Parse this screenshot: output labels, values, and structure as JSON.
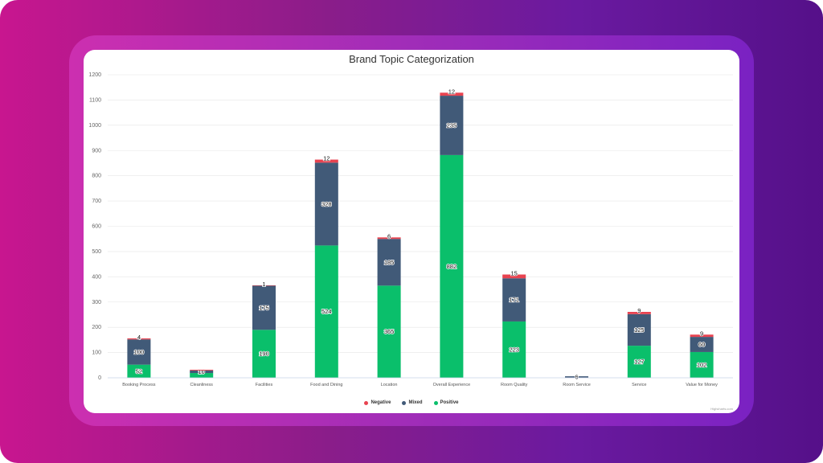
{
  "chart_data": {
    "type": "bar",
    "stacked": true,
    "title": "Brand Topic Categorization",
    "categories": [
      "Booking Process",
      "Cleanliness",
      "Facilities",
      "Food and Dining",
      "Location",
      "Overall Experience",
      "Room Quality",
      "Room Service",
      "Service",
      "Value for Money"
    ],
    "series": [
      {
        "name": "Positive",
        "color": "#0abf6b",
        "values": [
          52,
          19,
          190,
          524,
          365,
          882,
          223,
          0,
          127,
          102
        ]
      },
      {
        "name": "Mixed",
        "color": "#415a78",
        "values": [
          100,
          10,
          175,
          328,
          185,
          235,
          171,
          6,
          125,
          60
        ]
      },
      {
        "name": "Negative",
        "color": "#e84350",
        "values": [
          4,
          3,
          1,
          12,
          6,
          12,
          15,
          0,
          9,
          9
        ]
      }
    ],
    "data_labels": [
      {
        "Positive": "52",
        "Mixed": "100",
        "Negative": "4"
      },
      {
        "Positive": "",
        "Mixed": "10",
        "Negative": ""
      },
      {
        "Positive": "190",
        "Mixed": "175",
        "Negative": "1"
      },
      {
        "Positive": "524",
        "Mixed": "328",
        "Negative": "12"
      },
      {
        "Positive": "365",
        "Mixed": "185",
        "Negative": "6"
      },
      {
        "Positive": "882",
        "Mixed": "235",
        "Negative": "12"
      },
      {
        "Positive": "223",
        "Mixed": "171",
        "Negative": "15"
      },
      {
        "Positive": "",
        "Mixed": "6",
        "Negative": ""
      },
      {
        "Positive": "127",
        "Mixed": "125",
        "Negative": "9"
      },
      {
        "Positive": "102",
        "Mixed": "60",
        "Negative": "9"
      }
    ],
    "ylim": [
      0,
      1200
    ],
    "yticks": [
      0,
      100,
      200,
      300,
      400,
      500,
      600,
      700,
      800,
      900,
      1000,
      1100,
      1200
    ],
    "grid": true,
    "legend_position": "bottom"
  },
  "legend": [
    {
      "label": "Negative",
      "color": "#e84350"
    },
    {
      "label": "Mixed",
      "color": "#415a78"
    },
    {
      "label": "Positive",
      "color": "#0abf6b"
    }
  ],
  "credit": "Highcharts.com"
}
